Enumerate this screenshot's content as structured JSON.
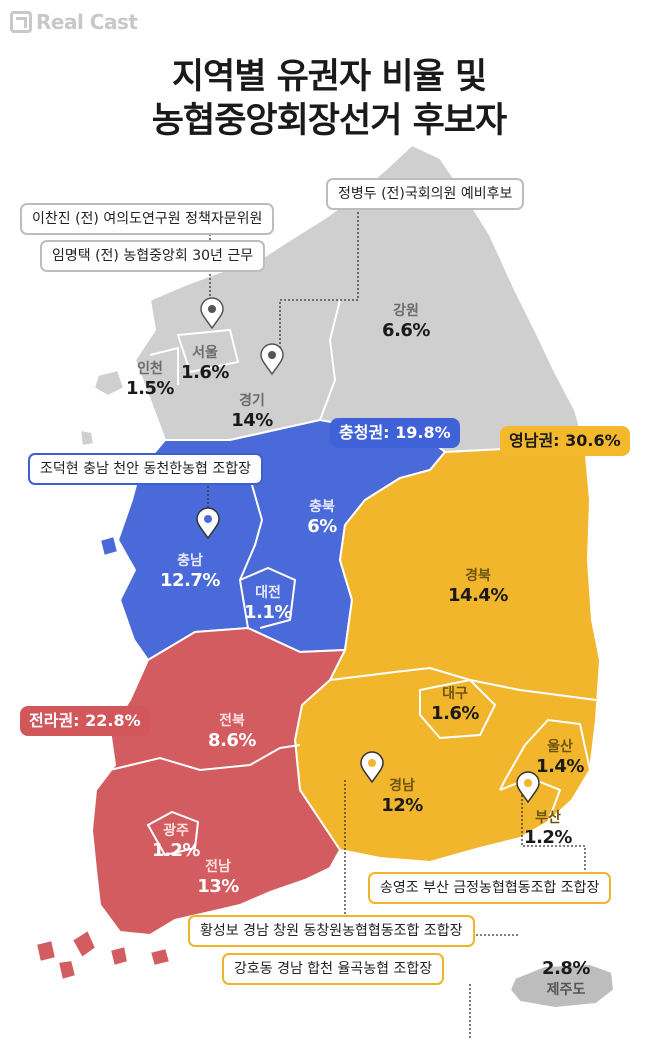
{
  "brand": "Real Cast",
  "title": [
    "지역별 유권자 비율 및",
    "농협중앙회장선거 후보자"
  ],
  "regions": {
    "gangwon": {
      "name": "강원",
      "value": "6.6%"
    },
    "seoul": {
      "name": "서울",
      "value": "1.6%"
    },
    "incheon": {
      "name": "인천",
      "value": "1.5%"
    },
    "gyeonggi": {
      "name": "경기",
      "value": "14%"
    },
    "chungbuk": {
      "name": "충북",
      "value": "6%"
    },
    "chungnam": {
      "name": "충남",
      "value": "12.7%"
    },
    "daejeon": {
      "name": "대전",
      "value": "1.1%"
    },
    "gyeongbuk": {
      "name": "경북",
      "value": "14.4%"
    },
    "daegu": {
      "name": "대구",
      "value": "1.6%"
    },
    "jeonbuk": {
      "name": "전북",
      "value": "8.6%"
    },
    "gwangju": {
      "name": "광주",
      "value": "1.2%"
    },
    "jeonnam": {
      "name": "전남",
      "value": "13%"
    },
    "gyeongnam": {
      "name": "경남",
      "value": "12%"
    },
    "ulsan": {
      "name": "울산",
      "value": "1.4%"
    },
    "busan": {
      "name": "부산",
      "value": "1.2%"
    },
    "jeju": {
      "name": "제주도",
      "value": "2.8%"
    }
  },
  "blocs": {
    "chungcheong": "충청권: 19.8%",
    "yeongnam": "영남권: 30.6%",
    "jeolla": "전라권: 22.8%"
  },
  "candidates": {
    "jeong": "정병두 (전)국회의원 예비후보",
    "lee": "이찬진 (전) 여의도연구원 정책자문위원",
    "lim": "임명택 (전) 농협중앙회 30년 근무",
    "jo": "조덕현 충남 천안 동천한농협 조합장",
    "song": "송영조 부산 금정농협협동조합 조합장",
    "hwang": "황성보 경남 창원 동창원농협협동조합 조합장",
    "kang": "강호동 경남 합천 율곡농협 조합장"
  },
  "colors": {
    "capital": "#cfcfcf",
    "chungcheong": "#4a6ad9",
    "yeongnam": "#f2b62d",
    "jeolla": "#d25c5f",
    "jeju": "#bdbdbd"
  },
  "icons": [
    "map-pin-icon",
    "logo-icon"
  ]
}
